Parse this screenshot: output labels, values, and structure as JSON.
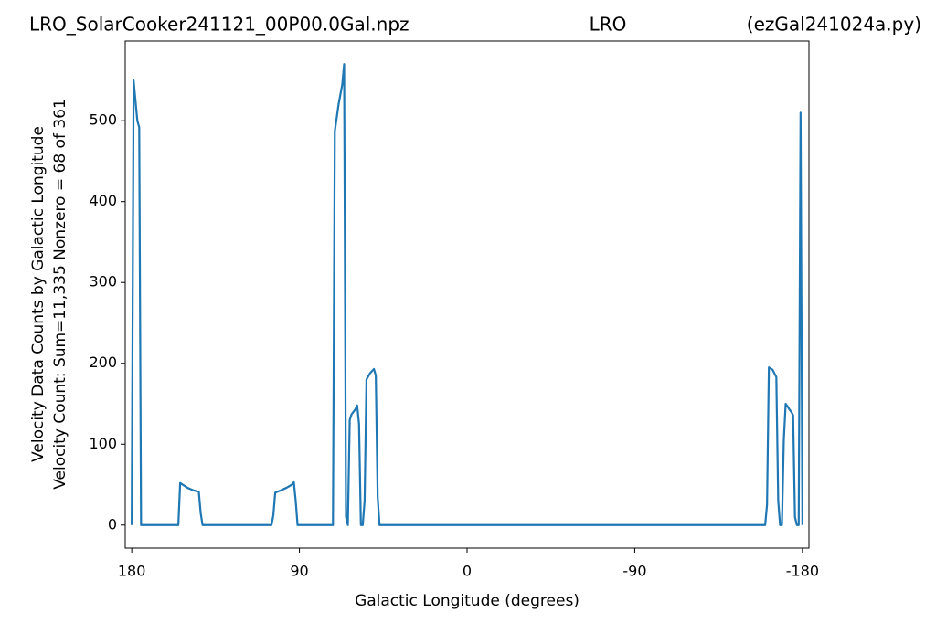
{
  "chart_data": {
    "type": "line",
    "title_parts": [
      "LRO_SolarCooker241121_00P00.0Gal.npz",
      "LRO",
      "(ezGal241024a.py)"
    ],
    "xlabel": "Galactic Longitude (degrees)",
    "ylabel": [
      "Velocity Data Counts by Galactic Longitude",
      "Velocity Count: Sum=11,335 Nonzero = 68 of 361"
    ],
    "x": [
      180,
      179,
      178,
      177,
      176,
      175,
      155,
      154,
      152,
      150,
      147,
      144,
      143,
      142,
      105,
      104,
      103,
      100,
      97,
      94,
      93,
      92,
      91,
      72,
      71,
      69,
      67,
      66,
      65,
      64,
      63,
      62,
      60,
      59,
      58,
      57,
      56,
      55,
      54,
      52,
      50,
      49,
      48,
      47,
      -160,
      -161,
      -162,
      -164,
      -166,
      -167,
      -168,
      -169,
      -170,
      -171,
      -172,
      -173,
      -174,
      -175,
      -176,
      -177,
      -178,
      -179,
      -180
    ],
    "series": [
      {
        "color": "#1f77b4",
        "values": [
          0,
          550,
          525,
          500,
          492,
          0,
          0,
          52,
          49,
          46,
          43,
          41,
          15,
          0,
          0,
          12,
          40,
          43,
          46,
          50,
          53,
          30,
          0,
          0,
          487,
          520,
          545,
          570,
          10,
          0,
          130,
          137,
          143,
          148,
          125,
          0,
          0,
          30,
          180,
          188,
          193,
          185,
          35,
          0,
          0,
          25,
          195,
          192,
          183,
          30,
          0,
          0,
          105,
          150,
          147,
          143,
          140,
          136,
          10,
          0,
          0,
          510,
          0
        ]
      }
    ],
    "xlim": [
      183.5,
      -183.5
    ],
    "ylim": [
      -28.5,
      598.5
    ],
    "xticks": [
      180,
      90,
      0,
      -90,
      -180
    ],
    "yticks": [
      0,
      100,
      200,
      300,
      400,
      500
    ]
  }
}
